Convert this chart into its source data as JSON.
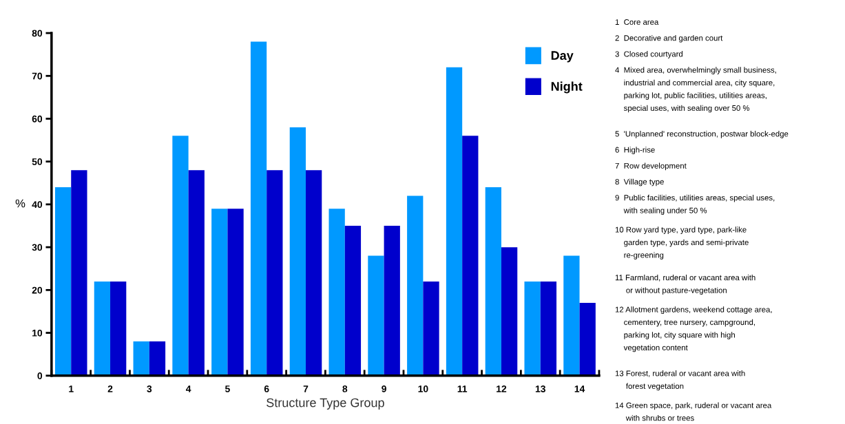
{
  "chart_data": {
    "type": "bar",
    "xlabel": "Structure Type Group",
    "ylabel": "%",
    "categories": [
      "1",
      "2",
      "3",
      "4",
      "5",
      "6",
      "7",
      "8",
      "9",
      "10",
      "11",
      "12",
      "13",
      "14"
    ],
    "series": [
      {
        "name": "Day",
        "color": "#0099ff",
        "values": [
          44,
          22,
          8,
          56,
          39,
          78,
          58,
          39,
          28,
          42,
          72,
          44,
          22,
          28
        ]
      },
      {
        "name": "Night",
        "color": "#0000cc",
        "values": [
          48,
          22,
          8,
          48,
          39,
          48,
          48,
          35,
          35,
          22,
          56,
          30,
          22,
          17
        ]
      }
    ],
    "ylim": [
      0,
      80
    ],
    "yticks": [
      0,
      10,
      20,
      30,
      40,
      50,
      60,
      70,
      80
    ],
    "grid": false,
    "legend": "top right",
    "annotations": [
      "1  Core area",
      "2  Decorative and garden court",
      "3  Closed courtyard",
      "4  Mixed area, overwhelmingly small business,\n    industrial and commercial area, city square,\n    parking lot, public facilities, utilities areas,\n    special uses, with sealing over 50 %",
      "5  'Unplanned' reconstruction, postwar block-edge",
      "6  High-rise",
      "7  Row development",
      "8  Village type",
      "9  Public facilities, utilities areas, special uses,\n    with sealing under 50 %",
      "10 Row yard type, yard type, park-like\n    garden type, yards and semi-private\n    re-greening",
      "11 Farmland, ruderal or vacant area with\n     or without pasture-vegetation",
      "12 Allotment gardens, weekend cottage area,\n    cementery, tree nursery, campground,\n    parking lot, city square with high\n    vegetation content",
      "13 Forest, ruderal or vacant area with\n     forest vegetation",
      "14 Green space, park, ruderal or vacant area\n     with shrubs or trees"
    ]
  }
}
